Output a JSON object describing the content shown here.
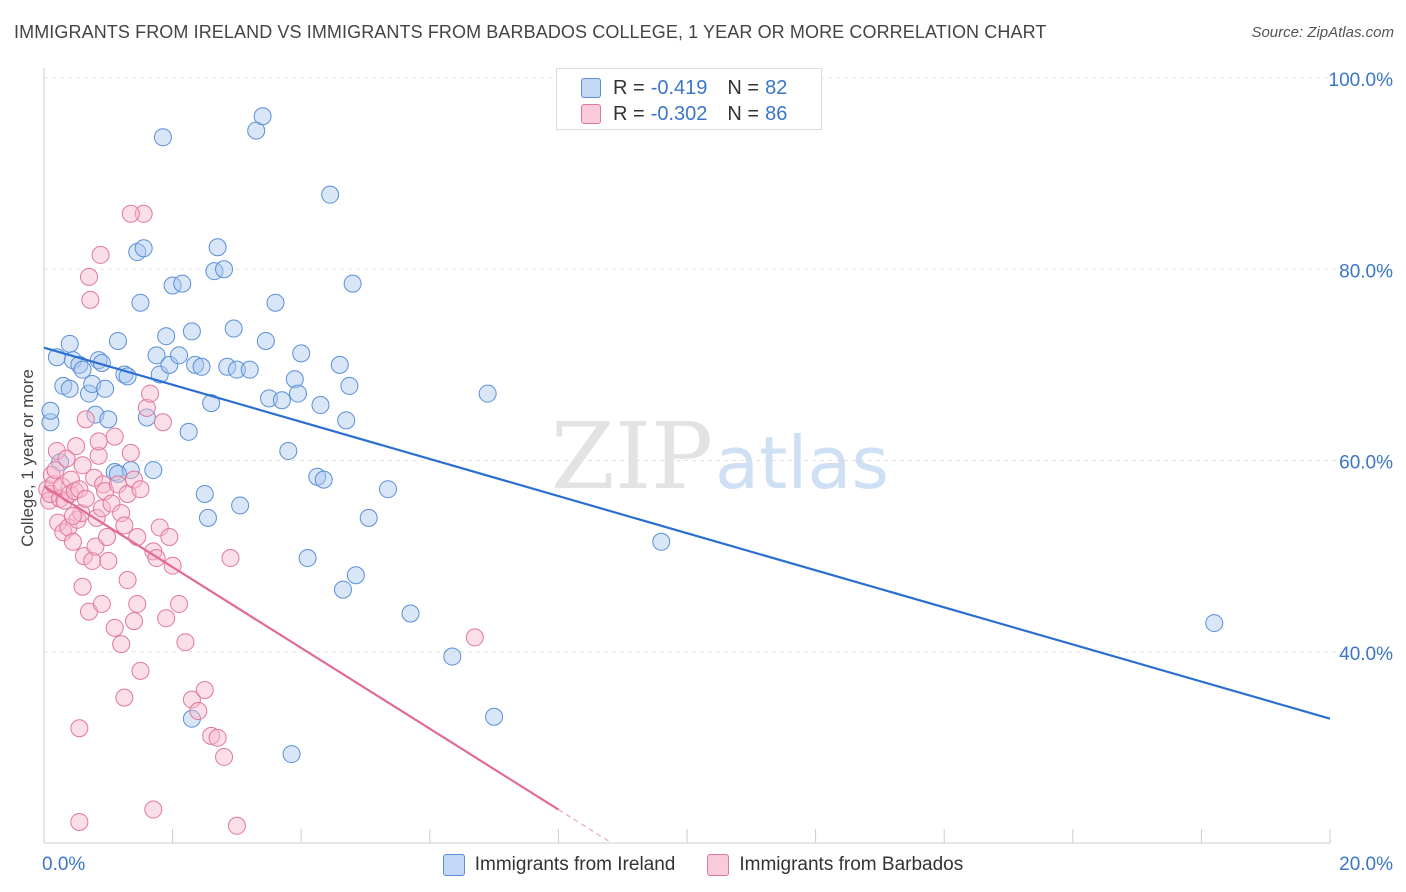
{
  "header": {
    "title": "IMMIGRANTS FROM IRELAND VS IMMIGRANTS FROM BARBADOS COLLEGE, 1 YEAR OR MORE CORRELATION CHART",
    "source": "Source: ZipAtlas.com"
  },
  "watermark": {
    "zip": "ZIP",
    "atlas": "atlas"
  },
  "legend": {
    "rows": [
      {
        "r_label": "R =",
        "r_value": "-0.419",
        "n_label": "N =",
        "n_value": "82",
        "color": "#a9c8f0"
      },
      {
        "r_label": "R =",
        "r_value": "-0.302",
        "n_label": "N =",
        "n_value": "86",
        "color": "#f6b8cb"
      }
    ]
  },
  "chart_data": {
    "type": "scatter",
    "title": "IMMIGRANTS FROM IRELAND VS IMMIGRANTS FROM BARBADOS COLLEGE, 1 YEAR OR MORE CORRELATION CHART",
    "xlabel": "",
    "ylabel": "College, 1 year or more",
    "xlim": [
      0,
      20
    ],
    "ylim": [
      20,
      100
    ],
    "x_tick_labels": [
      "0.0%",
      "20.0%"
    ],
    "y_ticks": [
      40,
      60,
      80,
      100
    ],
    "y_tick_labels": [
      "40.0%",
      "60.0%",
      "80.0%",
      "100.0%"
    ],
    "grid": true,
    "legend_position": "bottom",
    "series": [
      {
        "name": "Immigrants from Ireland",
        "color": "#a9c8f0",
        "edge_color": "#5b8fd6",
        "trend": {
          "x": [
            0,
            20
          ],
          "y": [
            71.8,
            33.0
          ],
          "color": "#2b6fd0"
        },
        "points": [
          [
            0.1,
            64.0
          ],
          [
            0.1,
            65.2
          ],
          [
            0.2,
            70.8
          ],
          [
            0.25,
            59.8
          ],
          [
            0.3,
            67.8
          ],
          [
            0.4,
            72.2
          ],
          [
            0.4,
            67.5
          ],
          [
            0.45,
            70.5
          ],
          [
            0.55,
            70.0
          ],
          [
            0.6,
            69.5
          ],
          [
            0.7,
            67.0
          ],
          [
            0.75,
            68.0
          ],
          [
            0.8,
            64.8
          ],
          [
            0.85,
            70.5
          ],
          [
            0.9,
            70.2
          ],
          [
            0.95,
            67.5
          ],
          [
            1.0,
            64.3
          ],
          [
            1.1,
            58.8
          ],
          [
            1.15,
            72.5
          ],
          [
            1.25,
            69.0
          ],
          [
            1.3,
            68.8
          ],
          [
            1.35,
            59.0
          ],
          [
            1.45,
            81.8
          ],
          [
            1.5,
            76.5
          ],
          [
            1.55,
            82.2
          ],
          [
            1.6,
            64.5
          ],
          [
            1.7,
            59.0
          ],
          [
            1.75,
            71.0
          ],
          [
            1.8,
            69.0
          ],
          [
            1.85,
            93.8
          ],
          [
            1.9,
            73.0
          ],
          [
            1.95,
            70.0
          ],
          [
            2.0,
            78.3
          ],
          [
            2.1,
            71.0
          ],
          [
            2.15,
            78.5
          ],
          [
            2.25,
            63.0
          ],
          [
            2.3,
            73.5
          ],
          [
            2.35,
            70.0
          ],
          [
            2.45,
            69.8
          ],
          [
            2.5,
            56.5
          ],
          [
            2.55,
            54.0
          ],
          [
            2.6,
            66.0
          ],
          [
            2.65,
            79.8
          ],
          [
            2.7,
            82.3
          ],
          [
            2.8,
            80.0
          ],
          [
            2.85,
            69.8
          ],
          [
            2.95,
            73.8
          ],
          [
            3.0,
            69.5
          ],
          [
            3.05,
            55.3
          ],
          [
            3.2,
            69.5
          ],
          [
            3.3,
            94.5
          ],
          [
            3.4,
            96.0
          ],
          [
            3.45,
            72.5
          ],
          [
            3.5,
            66.5
          ],
          [
            3.6,
            76.5
          ],
          [
            3.7,
            66.3
          ],
          [
            3.8,
            61.0
          ],
          [
            3.9,
            68.5
          ],
          [
            3.95,
            67.0
          ],
          [
            4.0,
            71.2
          ],
          [
            4.1,
            49.8
          ],
          [
            4.25,
            58.3
          ],
          [
            4.3,
            65.8
          ],
          [
            4.35,
            58.0
          ],
          [
            4.45,
            87.8
          ],
          [
            4.6,
            70.0
          ],
          [
            4.65,
            46.5
          ],
          [
            4.7,
            64.2
          ],
          [
            4.75,
            67.8
          ],
          [
            4.8,
            78.5
          ],
          [
            4.85,
            48.0
          ],
          [
            5.05,
            54.0
          ],
          [
            5.35,
            57.0
          ],
          [
            5.7,
            44.0
          ],
          [
            6.35,
            39.5
          ],
          [
            6.9,
            67.0
          ],
          [
            7.0,
            33.2
          ],
          [
            9.6,
            51.5
          ],
          [
            18.2,
            43.0
          ],
          [
            1.15,
            58.6
          ],
          [
            2.3,
            33.0
          ],
          [
            3.85,
            29.3
          ]
        ]
      },
      {
        "name": "Immigrants from Barbados",
        "color": "#f6b8cb",
        "edge_color": "#e0789b",
        "trend": {
          "x": [
            0,
            8.0
          ],
          "y": [
            57.3,
            23.5
          ],
          "color": "#e26b95",
          "dashed_extension_to_x": 8.8
        },
        "points": [
          [
            0.05,
            57.0
          ],
          [
            0.08,
            55.8
          ],
          [
            0.1,
            56.5
          ],
          [
            0.12,
            58.5
          ],
          [
            0.15,
            57.5
          ],
          [
            0.18,
            59.0
          ],
          [
            0.2,
            61.0
          ],
          [
            0.22,
            53.5
          ],
          [
            0.25,
            56.0
          ],
          [
            0.28,
            57.3
          ],
          [
            0.3,
            52.5
          ],
          [
            0.32,
            55.8
          ],
          [
            0.35,
            60.2
          ],
          [
            0.38,
            53.0
          ],
          [
            0.4,
            56.5
          ],
          [
            0.42,
            58.0
          ],
          [
            0.45,
            51.5
          ],
          [
            0.48,
            56.8
          ],
          [
            0.5,
            61.5
          ],
          [
            0.52,
            53.8
          ],
          [
            0.55,
            57.0
          ],
          [
            0.58,
            54.5
          ],
          [
            0.6,
            59.5
          ],
          [
            0.62,
            50.0
          ],
          [
            0.65,
            56.0
          ],
          [
            0.7,
            79.2
          ],
          [
            0.72,
            76.8
          ],
          [
            0.75,
            49.5
          ],
          [
            0.78,
            58.2
          ],
          [
            0.8,
            51.0
          ],
          [
            0.82,
            54.0
          ],
          [
            0.85,
            60.5
          ],
          [
            0.88,
            81.5
          ],
          [
            0.9,
            55.0
          ],
          [
            0.92,
            57.5
          ],
          [
            0.95,
            56.8
          ],
          [
            0.98,
            52.0
          ],
          [
            1.0,
            49.5
          ],
          [
            1.05,
            55.5
          ],
          [
            1.1,
            62.5
          ],
          [
            1.15,
            57.5
          ],
          [
            1.2,
            54.5
          ],
          [
            1.25,
            53.2
          ],
          [
            1.3,
            56.5
          ],
          [
            1.35,
            60.8
          ],
          [
            1.4,
            58.0
          ],
          [
            1.45,
            52.0
          ],
          [
            1.5,
            57.0
          ],
          [
            1.55,
            85.8
          ],
          [
            1.6,
            65.5
          ],
          [
            1.65,
            67.0
          ],
          [
            1.7,
            50.5
          ],
          [
            1.75,
            49.8
          ],
          [
            1.8,
            53.0
          ],
          [
            1.85,
            64.0
          ],
          [
            1.9,
            43.5
          ],
          [
            1.95,
            52.0
          ],
          [
            2.0,
            49.0
          ],
          [
            2.1,
            45.0
          ],
          [
            2.2,
            41.0
          ],
          [
            2.3,
            35.0
          ],
          [
            2.4,
            33.8
          ],
          [
            2.5,
            36.0
          ],
          [
            2.6,
            31.2
          ],
          [
            2.7,
            31.0
          ],
          [
            2.8,
            29.0
          ],
          [
            2.9,
            49.8
          ],
          [
            3.0,
            21.8
          ],
          [
            0.55,
            32.0
          ],
          [
            0.6,
            46.8
          ],
          [
            0.7,
            44.2
          ],
          [
            0.9,
            45.0
          ],
          [
            1.1,
            42.5
          ],
          [
            1.2,
            40.8
          ],
          [
            1.3,
            47.5
          ],
          [
            1.4,
            43.2
          ],
          [
            1.5,
            38.0
          ],
          [
            1.7,
            23.5
          ],
          [
            1.35,
            85.8
          ],
          [
            6.7,
            41.5
          ],
          [
            0.55,
            22.2
          ],
          [
            0.45,
            54.2
          ],
          [
            0.65,
            64.3
          ],
          [
            0.85,
            62.0
          ],
          [
            1.25,
            35.2
          ],
          [
            1.45,
            45.0
          ]
        ]
      }
    ]
  }
}
